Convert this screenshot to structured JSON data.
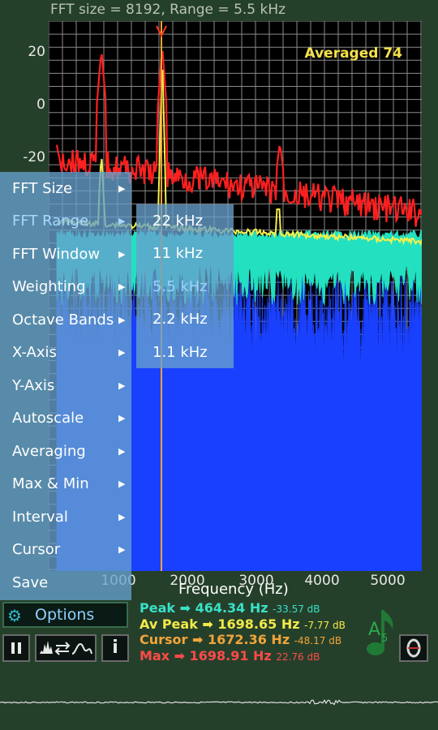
{
  "header": {
    "title": "FFT size = 8192, Range = 5.5 kHz",
    "averaged": "Averaged 74"
  },
  "plot": {
    "y_ticks": [
      "20",
      "0",
      "-20"
    ],
    "x_ticks": [
      "1000",
      "2000",
      "3000",
      "4000",
      "5000"
    ],
    "x_label": "Frequency (Hz)"
  },
  "menu": {
    "items": [
      {
        "label": "FFT Size",
        "arrow": "▶"
      },
      {
        "label": "FFT Range",
        "arrow": "▶"
      },
      {
        "label": "FFT Window",
        "arrow": "▶"
      },
      {
        "label": "Weighting",
        "arrow": "▶"
      },
      {
        "label": "Octave Bands",
        "arrow": "▶"
      },
      {
        "label": "X-Axis",
        "arrow": "▶"
      },
      {
        "label": "Y-Axis",
        "arrow": "▶"
      },
      {
        "label": "Autoscale",
        "arrow": "▶"
      },
      {
        "label": "Averaging",
        "arrow": "▶"
      },
      {
        "label": "Max & Min",
        "arrow": "▶"
      },
      {
        "label": "Interval",
        "arrow": "▶"
      },
      {
        "label": "Cursor",
        "arrow": "▶"
      },
      {
        "label": "Save",
        "arrow": ""
      }
    ],
    "active_index": 1
  },
  "submenu": {
    "items": [
      "22 kHz",
      "11 kHz",
      "5.5 kHz",
      "2.2 kHz",
      "1.1 kHz"
    ],
    "selected_index": 2
  },
  "controls": {
    "options_label": "Options",
    "pause_icon": "pause-icon",
    "spectrum_icon": "spectrum-toggle-icon",
    "info_label": "i"
  },
  "stats": {
    "peak": {
      "label": "Peak ➡ 464.34 Hz",
      "db": "-33.57 dB",
      "color": "#39e0c8"
    },
    "av_peak": {
      "label": "Av Peak ➡ 1698.65 Hz",
      "db": "-7.77 dB",
      "color": "#f4e94a"
    },
    "cursor": {
      "label": "Cursor ➡ 1672.36 Hz",
      "db": "-48.17 dB",
      "color": "#f2a43a"
    },
    "max": {
      "label": "Max ➡ 1698.91 Hz",
      "db": "22.76 dB",
      "color": "#ff4a4a"
    }
  },
  "note": {
    "name": "A",
    "octave": "5"
  },
  "colors": {
    "max": "#ff2020",
    "average": "#f5f04a",
    "current_teal": "#22e0c0",
    "current_blue": "#1a40ff",
    "grid": "#8a8a8a",
    "cursor": "#f2a43a"
  }
}
